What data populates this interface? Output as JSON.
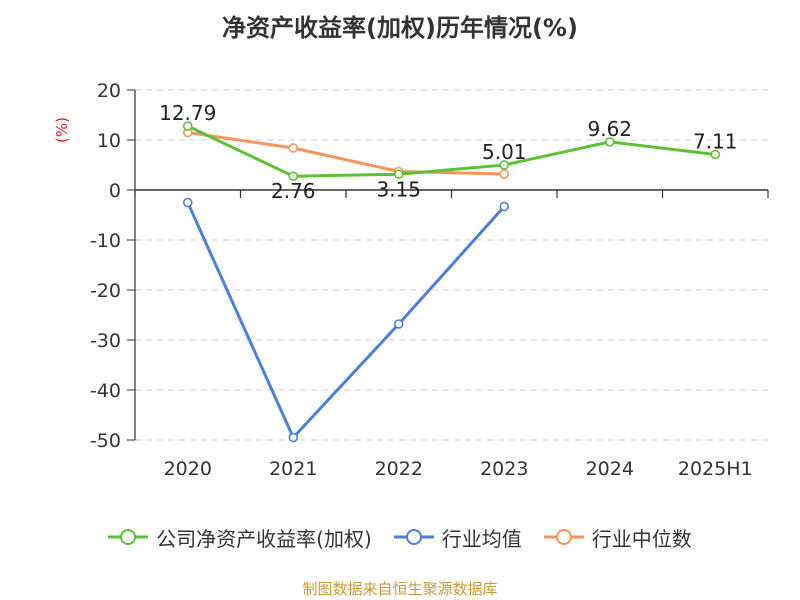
{
  "title": "净资产收益率(加权)历年情况(%)",
  "source": "制图数据来自恒生聚源数据库",
  "chart_data": {
    "type": "line",
    "title": "净资产收益率(加权)历年情况(%)",
    "ylabel": "(%)",
    "xlabel": "",
    "categories": [
      "2020",
      "2021",
      "2022",
      "2023",
      "2024",
      "2025H1"
    ],
    "ylim": [
      -50,
      20
    ],
    "yticks": [
      20,
      10,
      0,
      -10,
      -20,
      -30,
      -40,
      -50
    ],
    "grid": true,
    "legend_position": "bottom",
    "series": [
      {
        "name": "公司净资产收益率(加权)",
        "color": "#5cc233",
        "values": [
          12.79,
          2.76,
          3.15,
          5.01,
          9.62,
          7.11
        ],
        "labels": [
          "12.79",
          "2.76",
          "3.15",
          "5.01",
          "9.62",
          "7.11"
        ]
      },
      {
        "name": "行业均值",
        "color": "#4a7fdc",
        "values": [
          -2.5,
          -49.5,
          -26.8,
          -3.3,
          null,
          null
        ]
      },
      {
        "name": "行业中位数",
        "color": "#f7945a",
        "values": [
          11.5,
          8.4,
          3.7,
          3.2,
          null,
          null
        ]
      }
    ]
  }
}
